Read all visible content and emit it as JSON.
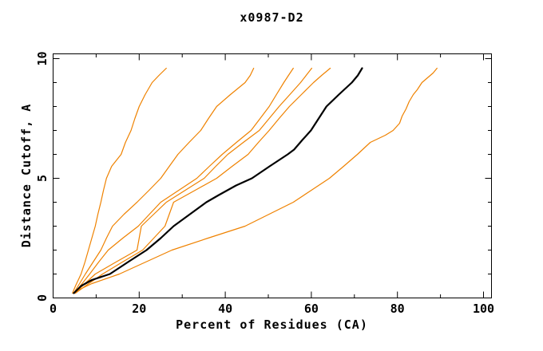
{
  "window": {
    "background": "#ffffff",
    "frame_color": "#000000"
  },
  "chart_data": {
    "type": "line",
    "title": "x0987-D2",
    "xlabel": "Percent of Residues (CA)",
    "ylabel": "Distance Cutoff, A",
    "xlim": [
      0,
      100
    ],
    "ylim": [
      0,
      10
    ],
    "grid": false,
    "legend": false,
    "x_ticks": {
      "major": [
        0,
        20,
        40,
        60,
        80,
        100
      ],
      "minor": [
        10,
        30,
        50,
        70,
        90
      ]
    },
    "y_ticks": {
      "major": [
        0,
        5,
        10
      ],
      "minor": [
        1,
        2,
        3,
        4,
        6,
        7,
        8,
        9
      ]
    },
    "colors": {
      "highlight_series": "#000000",
      "other_series": "#ef8200"
    },
    "series": [
      {
        "name": "curve-1",
        "color": "#ef8200",
        "width": 1.2,
        "points": [
          [
            4.5,
            0.2
          ],
          [
            5.2,
            0.5
          ],
          [
            6.5,
            1
          ],
          [
            7.4,
            1.5
          ],
          [
            8.2,
            2
          ],
          [
            9,
            2.5
          ],
          [
            9.8,
            3
          ],
          [
            10.4,
            3.5
          ],
          [
            11.1,
            4
          ],
          [
            11.7,
            4.5
          ],
          [
            12.4,
            5
          ],
          [
            13.6,
            5.5
          ],
          [
            15.8,
            6
          ],
          [
            16.8,
            6.5
          ],
          [
            18.1,
            7
          ],
          [
            19,
            7.5
          ],
          [
            20,
            8
          ],
          [
            21.4,
            8.5
          ],
          [
            23,
            9
          ],
          [
            24.6,
            9.3
          ],
          [
            26.3,
            9.6
          ]
        ]
      },
      {
        "name": "curve-2",
        "color": "#ef8200",
        "width": 1.2,
        "points": [
          [
            4.8,
            0.2
          ],
          [
            5.8,
            0.5
          ],
          [
            7.5,
            1
          ],
          [
            9.3,
            1.5
          ],
          [
            11.1,
            2
          ],
          [
            12.4,
            2.5
          ],
          [
            13.8,
            3
          ],
          [
            16.5,
            3.5
          ],
          [
            19.5,
            4
          ],
          [
            22.3,
            4.5
          ],
          [
            25,
            5
          ],
          [
            27,
            5.5
          ],
          [
            29,
            6
          ],
          [
            31.6,
            6.5
          ],
          [
            34.3,
            7
          ],
          [
            36.1,
            7.5
          ],
          [
            38,
            8
          ],
          [
            41.2,
            8.5
          ],
          [
            44.6,
            9
          ],
          [
            45.8,
            9.3
          ],
          [
            46.6,
            9.6
          ]
        ]
      },
      {
        "name": "curve-3",
        "color": "#ef8200",
        "width": 1.2,
        "points": [
          [
            5,
            0.2
          ],
          [
            6.3,
            0.5
          ],
          [
            8.5,
            1
          ],
          [
            10.6,
            1.5
          ],
          [
            12.8,
            2
          ],
          [
            16.2,
            2.5
          ],
          [
            19.8,
            3
          ],
          [
            22.4,
            3.5
          ],
          [
            25,
            4
          ],
          [
            29.2,
            4.5
          ],
          [
            33.4,
            5
          ],
          [
            36.3,
            5.5
          ],
          [
            39.3,
            6
          ],
          [
            42.6,
            6.5
          ],
          [
            46,
            7
          ],
          [
            48.1,
            7.5
          ],
          [
            50.2,
            8
          ],
          [
            51.9,
            8.5
          ],
          [
            53.6,
            9
          ],
          [
            54.7,
            9.3
          ],
          [
            55.8,
            9.6
          ]
        ]
      },
      {
        "name": "curve-4",
        "color": "#ef8200",
        "width": 1.2,
        "points": [
          [
            5,
            0.2
          ],
          [
            6.8,
            0.5
          ],
          [
            9.8,
            1
          ],
          [
            14.6,
            1.5
          ],
          [
            19.5,
            2
          ],
          [
            20,
            2.5
          ],
          [
            20.5,
            3
          ],
          [
            23.4,
            3.5
          ],
          [
            26.3,
            4
          ],
          [
            30.7,
            4.5
          ],
          [
            35.1,
            5
          ],
          [
            37.8,
            5.5
          ],
          [
            40.6,
            6
          ],
          [
            44.2,
            6.5
          ],
          [
            47.9,
            7
          ],
          [
            50.2,
            7.5
          ],
          [
            52.5,
            8
          ],
          [
            55,
            8.5
          ],
          [
            57.5,
            9
          ],
          [
            58.8,
            9.3
          ],
          [
            60.1,
            9.6
          ]
        ]
      },
      {
        "name": "curve-5",
        "color": "#ef8200",
        "width": 1.2,
        "points": [
          [
            5.2,
            0.2
          ],
          [
            7.5,
            0.5
          ],
          [
            11.5,
            1
          ],
          [
            16.1,
            1.5
          ],
          [
            20.8,
            2
          ],
          [
            23.4,
            2.5
          ],
          [
            26,
            3
          ],
          [
            27,
            3.5
          ],
          [
            28,
            4
          ],
          [
            33,
            4.5
          ],
          [
            38,
            5
          ],
          [
            41.6,
            5.5
          ],
          [
            45.3,
            6
          ],
          [
            47.7,
            6.5
          ],
          [
            50.2,
            7
          ],
          [
            52.5,
            7.5
          ],
          [
            54.9,
            8
          ],
          [
            57.7,
            8.5
          ],
          [
            60.5,
            9
          ],
          [
            62.4,
            9.3
          ],
          [
            64.4,
            9.6
          ]
        ]
      },
      {
        "name": "curve-6",
        "color": "#ef8200",
        "width": 1.2,
        "points": [
          [
            5.5,
            0.3
          ],
          [
            9,
            0.6
          ],
          [
            15.4,
            1
          ],
          [
            21.5,
            1.5
          ],
          [
            27.6,
            2
          ],
          [
            36,
            2.5
          ],
          [
            44.6,
            3
          ],
          [
            50.2,
            3.5
          ],
          [
            55.8,
            4
          ],
          [
            60,
            4.5
          ],
          [
            64.2,
            5
          ],
          [
            67.5,
            5.5
          ],
          [
            70.7,
            6
          ],
          [
            73.7,
            6.5
          ],
          [
            77.2,
            6.8
          ],
          [
            79,
            7
          ],
          [
            80.5,
            7.3
          ],
          [
            81.1,
            7.6
          ],
          [
            82,
            7.9
          ],
          [
            82.7,
            8.2
          ],
          [
            83.7,
            8.5
          ],
          [
            84.6,
            8.7
          ],
          [
            85.7,
            9
          ],
          [
            87,
            9.2
          ],
          [
            88.3,
            9.4
          ],
          [
            89.2,
            9.6
          ]
        ]
      },
      {
        "name": "curve-highlight",
        "color": "#000000",
        "width": 2.2,
        "points": [
          [
            4.8,
            0.2
          ],
          [
            6.5,
            0.5
          ],
          [
            9,
            0.75
          ],
          [
            13.2,
            1
          ],
          [
            17.4,
            1.5
          ],
          [
            21.7,
            2
          ],
          [
            25,
            2.5
          ],
          [
            28,
            3
          ],
          [
            31.8,
            3.5
          ],
          [
            35.6,
            4
          ],
          [
            38.5,
            4.3
          ],
          [
            42.5,
            4.7
          ],
          [
            46.2,
            5
          ],
          [
            50.3,
            5.5
          ],
          [
            54.5,
            6
          ],
          [
            56,
            6.2
          ],
          [
            57.9,
            6.6
          ],
          [
            59.9,
            7
          ],
          [
            61.7,
            7.5
          ],
          [
            63.5,
            8
          ],
          [
            66.4,
            8.5
          ],
          [
            69.4,
            9
          ],
          [
            70.8,
            9.3
          ],
          [
            71.8,
            9.6
          ]
        ]
      }
    ]
  }
}
